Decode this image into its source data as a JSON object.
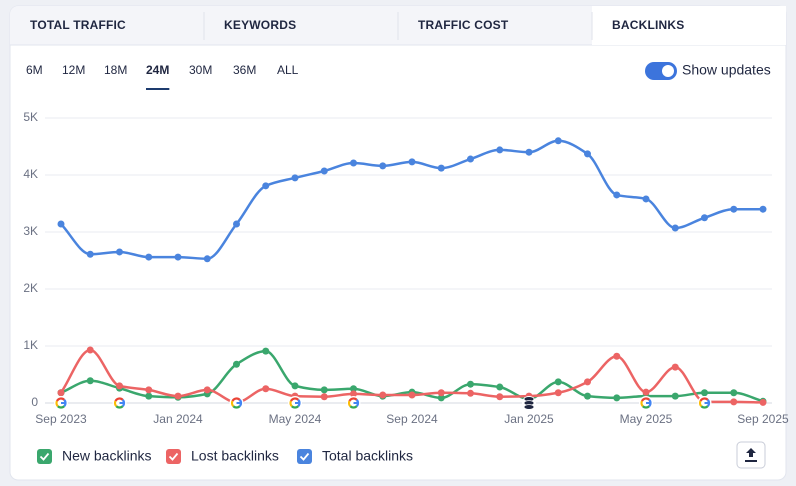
{
  "tabs": [
    "TOTAL TRAFFIC",
    "KEYWORDS",
    "TRAFFIC COST",
    "BACKLINKS"
  ],
  "active_tab": 3,
  "periods": [
    "6M",
    "12M",
    "18M",
    "24M",
    "30M",
    "36M",
    "ALL"
  ],
  "active_period": 3,
  "toggle": {
    "label": "Show updates",
    "on": true
  },
  "chart_data": {
    "type": "line",
    "categories": [
      "Sep 2023",
      null,
      null,
      null,
      "Jan 2024",
      null,
      null,
      null,
      "May 2024",
      null,
      null,
      null,
      "Sep 2024",
      null,
      null,
      null,
      "Jan 2025",
      null,
      null,
      null,
      "May 2025",
      null,
      null,
      null,
      "Sep 2025"
    ],
    "series": [
      {
        "name": "New backlinks",
        "color": "#3aa76d",
        "values": [
          180,
          390,
          260,
          120,
          100,
          160,
          680,
          910,
          300,
          230,
          250,
          120,
          190,
          90,
          330,
          280,
          70,
          370,
          120,
          90,
          120,
          120,
          180,
          180,
          30
        ]
      },
      {
        "name": "Lost backlinks",
        "color": "#ec6464",
        "values": [
          180,
          930,
          300,
          230,
          120,
          230,
          10,
          250,
          120,
          110,
          160,
          140,
          140,
          180,
          170,
          110,
          120,
          180,
          370,
          820,
          190,
          630,
          20,
          20,
          10
        ]
      },
      {
        "name": "Total backlinks",
        "color": "#4a84de",
        "values": [
          3140,
          2610,
          2650,
          2560,
          2560,
          2530,
          3140,
          3810,
          3950,
          4070,
          4210,
          4160,
          4230,
          4120,
          4280,
          4440,
          4400,
          4600,
          4370,
          3650,
          3580,
          3070,
          3250,
          3400,
          3400
        ]
      }
    ],
    "ylim": [
      0,
      5000
    ],
    "yticks": [
      0,
      {
        "value": 1000,
        "label": "1K"
      },
      {
        "value": 2000,
        "label": "2K"
      },
      {
        "value": 3000,
        "label": "3K"
      },
      {
        "value": 4000,
        "label": "4K"
      },
      {
        "value": 5000,
        "label": "5K"
      }
    ],
    "grid": true
  }
}
